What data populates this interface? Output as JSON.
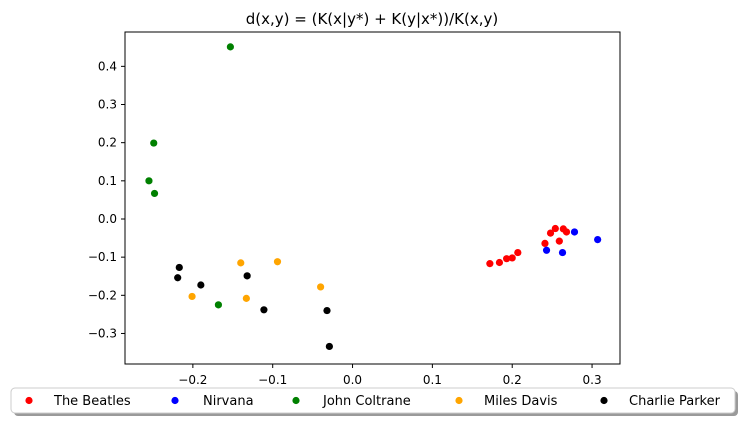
{
  "chart_data": {
    "type": "scatter",
    "title": "d(x,y) = (K(x|y*) + K(y|x*))/K(x,y)",
    "xlabel": "",
    "ylabel": "",
    "xlim": [
      -0.285,
      0.335
    ],
    "ylim": [
      -0.38,
      0.49
    ],
    "xticks": [
      -0.2,
      -0.1,
      0.0,
      0.1,
      0.2,
      0.3
    ],
    "xtick_labels": [
      "−0.2",
      "−0.1",
      "0.0",
      "0.1",
      "0.2",
      "0.3"
    ],
    "yticks": [
      -0.3,
      -0.2,
      -0.1,
      0.0,
      0.1,
      0.2,
      0.3,
      0.4
    ],
    "ytick_labels": [
      "−0.3",
      "−0.2",
      "−0.1",
      "0.0",
      "0.1",
      "0.2",
      "0.3",
      "0.4"
    ],
    "grid": false,
    "legend_position": "bottom-outside",
    "series": [
      {
        "name": "The Beatles",
        "color": "#ff0000",
        "points": [
          [
            0.172,
            -0.117
          ],
          [
            0.184,
            -0.114
          ],
          [
            0.193,
            -0.104
          ],
          [
            0.2,
            -0.102
          ],
          [
            0.207,
            -0.088
          ],
          [
            0.241,
            -0.064
          ],
          [
            0.248,
            -0.037
          ],
          [
            0.254,
            -0.025
          ],
          [
            0.259,
            -0.058
          ],
          [
            0.264,
            -0.026
          ],
          [
            0.268,
            -0.034
          ]
        ]
      },
      {
        "name": "Nirvana",
        "color": "#0000ff",
        "points": [
          [
            0.243,
            -0.082
          ],
          [
            0.263,
            -0.088
          ],
          [
            0.278,
            -0.034
          ],
          [
            0.307,
            -0.054
          ]
        ]
      },
      {
        "name": "John Coltrane",
        "color": "#008000",
        "points": [
          [
            -0.153,
            0.451
          ],
          [
            -0.249,
            0.199
          ],
          [
            -0.255,
            0.1
          ],
          [
            -0.248,
            0.067
          ],
          [
            -0.168,
            -0.225
          ]
        ]
      },
      {
        "name": "Miles Davis",
        "color": "#ffa500",
        "points": [
          [
            -0.14,
            -0.115
          ],
          [
            -0.094,
            -0.112
          ],
          [
            -0.04,
            -0.178
          ],
          [
            -0.133,
            -0.208
          ],
          [
            -0.201,
            -0.203
          ]
        ]
      },
      {
        "name": "Charlie Parker",
        "color": "#000000",
        "points": [
          [
            -0.217,
            -0.127
          ],
          [
            -0.219,
            -0.154
          ],
          [
            -0.132,
            -0.149
          ],
          [
            -0.19,
            -0.173
          ],
          [
            -0.111,
            -0.238
          ],
          [
            -0.032,
            -0.24
          ],
          [
            -0.029,
            -0.334
          ]
        ]
      }
    ]
  }
}
